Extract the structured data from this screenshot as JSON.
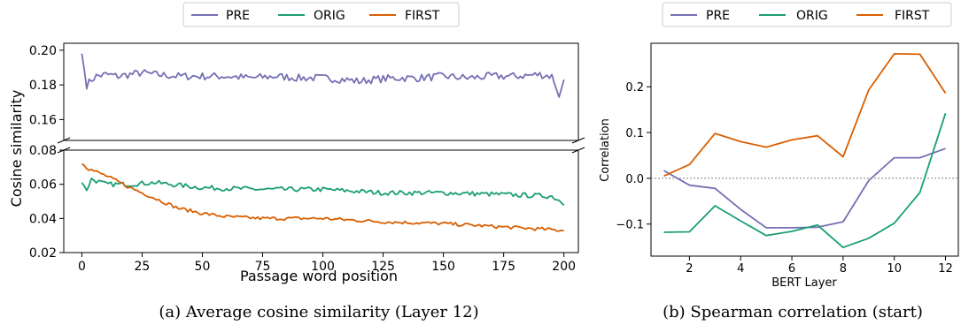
{
  "colors": {
    "PRE": "#7570b3",
    "ORIG": "#1b9e77",
    "FIRST": "#d95f02",
    "zero_line": "#808080"
  },
  "chart_data": [
    {
      "type": "line",
      "caption": "(a) Average cosine similarity (Layer 12)",
      "xlabel": "Passage word position",
      "ylabel": "Cosine similarity",
      "legend": [
        "PRE",
        "ORIG",
        "FIRST"
      ],
      "legend_position": "top",
      "broken_y_axis": true,
      "xlim": [
        -7.5,
        206
      ],
      "ylim_top": [
        0.148,
        0.204
      ],
      "ylim_bottom": [
        0.02,
        0.08
      ],
      "x_ticks": [
        0,
        25,
        50,
        75,
        100,
        125,
        150,
        175,
        200
      ],
      "y_ticks_top": [
        0.16,
        0.18,
        0.2
      ],
      "y_tick_labels_top": [
        "0.16",
        "0.18",
        "0.20"
      ],
      "y_ticks_bottom": [
        0.02,
        0.04,
        0.06,
        0.08
      ],
      "y_tick_labels_bottom": [
        "0.02",
        "0.04",
        "0.06",
        "0.08"
      ],
      "x_range": [
        0,
        200
      ],
      "series": [
        {
          "name": "PRE",
          "x": [
            0,
            2,
            4,
            6,
            10,
            15,
            20,
            25,
            30,
            40,
            50,
            60,
            70,
            80,
            90,
            100,
            110,
            115,
            120,
            130,
            140,
            150,
            160,
            170,
            180,
            190,
            195,
            198,
            200
          ],
          "values": [
            0.198,
            0.18,
            0.183,
            0.185,
            0.186,
            0.185,
            0.186,
            0.187,
            0.186,
            0.185,
            0.185,
            0.185,
            0.184,
            0.185,
            0.184,
            0.184,
            0.183,
            0.182,
            0.183,
            0.184,
            0.184,
            0.185,
            0.184,
            0.185,
            0.185,
            0.186,
            0.185,
            0.173,
            0.183
          ]
        },
        {
          "name": "ORIG",
          "x": [
            0,
            2,
            4,
            10,
            20,
            30,
            50,
            75,
            100,
            125,
            150,
            175,
            195,
            200
          ],
          "values": [
            0.061,
            0.057,
            0.063,
            0.06,
            0.06,
            0.061,
            0.058,
            0.057,
            0.057,
            0.055,
            0.055,
            0.054,
            0.053,
            0.049
          ]
        },
        {
          "name": "FIRST",
          "x": [
            0,
            3,
            10,
            20,
            30,
            40,
            50,
            60,
            75,
            100,
            125,
            150,
            175,
            200
          ],
          "values": [
            0.072,
            0.069,
            0.065,
            0.058,
            0.052,
            0.046,
            0.043,
            0.041,
            0.04,
            0.04,
            0.038,
            0.037,
            0.035,
            0.033
          ]
        }
      ]
    },
    {
      "type": "line",
      "caption": "(b) Spearman correlation (start)",
      "xlabel": "BERT Layer",
      "ylabel": "Correlation",
      "legend": [
        "PRE",
        "ORIG",
        "FIRST"
      ],
      "legend_position": "top",
      "xlim": [
        0.5,
        12.5
      ],
      "ylim": [
        -0.17,
        0.295
      ],
      "x_ticks": [
        2,
        4,
        6,
        8,
        10,
        12
      ],
      "y_ticks": [
        -0.1,
        0.0,
        0.1,
        0.2
      ],
      "y_tick_labels": [
        "−0.1",
        "0.0",
        "0.1",
        "0.2"
      ],
      "zero_line": "dotted",
      "series": [
        {
          "name": "PRE",
          "x": [
            1,
            2,
            3,
            4,
            5,
            6,
            7,
            8,
            9,
            10,
            11,
            12
          ],
          "values": [
            0.017,
            -0.015,
            -0.022,
            -0.068,
            -0.108,
            -0.108,
            -0.107,
            -0.095,
            -0.005,
            0.045,
            0.045,
            0.065
          ]
        },
        {
          "name": "ORIG",
          "x": [
            1,
            2,
            3,
            4,
            5,
            6,
            7,
            8,
            9,
            10,
            11,
            12
          ],
          "values": [
            -0.118,
            -0.117,
            -0.06,
            -0.093,
            -0.125,
            -0.116,
            -0.102,
            -0.151,
            -0.131,
            -0.098,
            -0.031,
            0.142
          ]
        },
        {
          "name": "FIRST",
          "x": [
            1,
            2,
            3,
            4,
            5,
            6,
            7,
            8,
            9,
            10,
            11,
            12
          ],
          "values": [
            0.005,
            0.03,
            0.098,
            0.08,
            0.068,
            0.084,
            0.093,
            0.047,
            0.193,
            0.272,
            0.271,
            0.186
          ]
        }
      ]
    }
  ]
}
